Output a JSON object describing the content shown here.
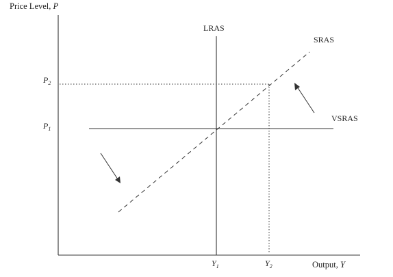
{
  "axes": {
    "y_title_text": "Price Level, ",
    "y_title_var": "P",
    "x_title_text": "Output, ",
    "x_title_var": "Y"
  },
  "curves": {
    "lras": "LRAS",
    "sras": "SRAS",
    "vsras": "VSRAS"
  },
  "price_levels": [
    {
      "base": "P",
      "sub": "1"
    },
    {
      "base": "P",
      "sub": "2"
    }
  ],
  "output_levels": [
    {
      "base": "Y",
      "sub": "1"
    },
    {
      "base": "Y",
      "sub": "2"
    }
  ],
  "colors": {
    "ink": "#333333",
    "background": "#ffffff"
  }
}
